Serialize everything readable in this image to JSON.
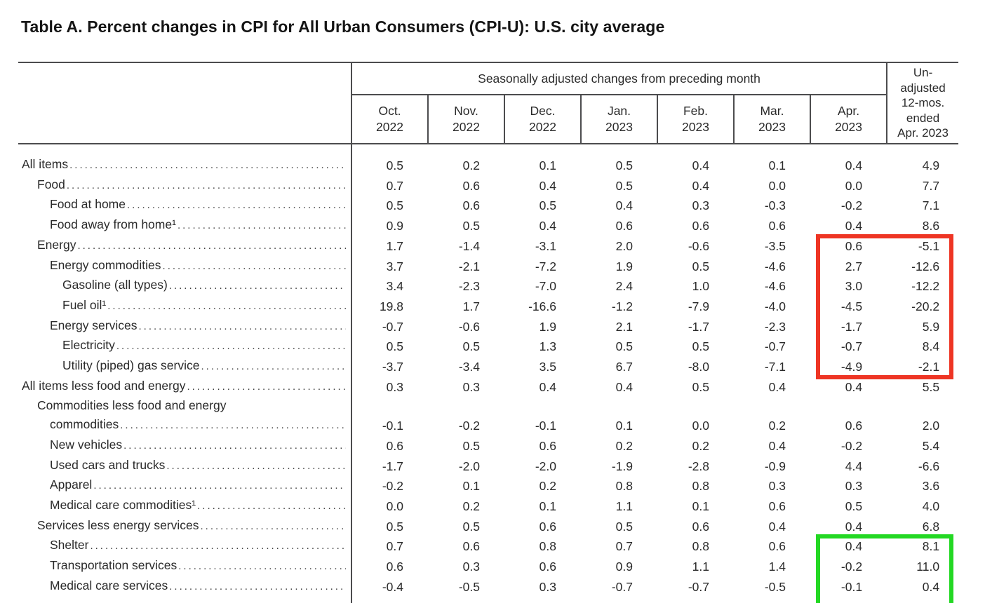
{
  "document": {
    "title": "Table A. Percent changes in CPI for All Urban Consumers (CPI-U): U.S. city average"
  },
  "colors": {
    "rule": "#4c4c4e",
    "text": "#2a2a2a",
    "highlight_red": "#ee3524",
    "highlight_green": "#23d823"
  },
  "table": {
    "header": {
      "seasonally_adjusted_label": "Seasonally adjusted changes from preceding month",
      "unadjusted_label": "Un-\nadjusted\n12-mos.\nended\nApr. 2023"
    },
    "columns": [
      {
        "month": "Oct.",
        "year": "2022"
      },
      {
        "month": "Nov.",
        "year": "2022"
      },
      {
        "month": "Dec.",
        "year": "2022"
      },
      {
        "month": "Jan.",
        "year": "2023"
      },
      {
        "month": "Feb.",
        "year": "2023"
      },
      {
        "month": "Mar.",
        "year": "2023"
      },
      {
        "month": "Apr.",
        "year": "2023"
      }
    ],
    "rows": [
      {
        "label": "All items",
        "indent": 0,
        "values": [
          "0.5",
          "0.2",
          "0.1",
          "0.5",
          "0.4",
          "0.1",
          "0.4",
          "4.9"
        ]
      },
      {
        "label": "Food",
        "indent": 1,
        "values": [
          "0.7",
          "0.6",
          "0.4",
          "0.5",
          "0.4",
          "0.0",
          "0.0",
          "7.7"
        ]
      },
      {
        "label": "Food at home",
        "indent": 2,
        "values": [
          "0.5",
          "0.6",
          "0.5",
          "0.4",
          "0.3",
          "-0.3",
          "-0.2",
          "7.1"
        ]
      },
      {
        "label": "Food away from home¹",
        "indent": 2,
        "values": [
          "0.9",
          "0.5",
          "0.4",
          "0.6",
          "0.6",
          "0.6",
          "0.4",
          "8.6"
        ]
      },
      {
        "label": "Energy",
        "indent": 1,
        "values": [
          "1.7",
          "-1.4",
          "-3.1",
          "2.0",
          "-0.6",
          "-3.5",
          "0.6",
          "-5.1"
        ]
      },
      {
        "label": "Energy commodities",
        "indent": 2,
        "values": [
          "3.7",
          "-2.1",
          "-7.2",
          "1.9",
          "0.5",
          "-4.6",
          "2.7",
          "-12.6"
        ]
      },
      {
        "label": "Gasoline (all types)",
        "indent": 3,
        "values": [
          "3.4",
          "-2.3",
          "-7.0",
          "2.4",
          "1.0",
          "-4.6",
          "3.0",
          "-12.2"
        ]
      },
      {
        "label": "Fuel oil¹",
        "indent": 3,
        "values": [
          "19.8",
          "1.7",
          "-16.6",
          "-1.2",
          "-7.9",
          "-4.0",
          "-4.5",
          "-20.2"
        ]
      },
      {
        "label": "Energy services",
        "indent": 2,
        "values": [
          "-0.7",
          "-0.6",
          "1.9",
          "2.1",
          "-1.7",
          "-2.3",
          "-1.7",
          "5.9"
        ]
      },
      {
        "label": "Electricity",
        "indent": 3,
        "values": [
          "0.5",
          "0.5",
          "1.3",
          "0.5",
          "0.5",
          "-0.7",
          "-0.7",
          "8.4"
        ]
      },
      {
        "label": "Utility (piped) gas service",
        "indent": 3,
        "values": [
          "-3.7",
          "-3.4",
          "3.5",
          "6.7",
          "-8.0",
          "-7.1",
          "-4.9",
          "-2.1"
        ]
      },
      {
        "label": "All items less food and energy",
        "indent": 0,
        "values": [
          "0.3",
          "0.3",
          "0.4",
          "0.4",
          "0.5",
          "0.4",
          "0.4",
          "5.5"
        ]
      },
      {
        "label": "Commodities less food and energy",
        "label_line2": "commodities",
        "indent": 1,
        "values": [
          "-0.1",
          "-0.2",
          "-0.1",
          "0.1",
          "0.0",
          "0.2",
          "0.6",
          "2.0"
        ]
      },
      {
        "label": "New vehicles",
        "indent": 2,
        "values": [
          "0.6",
          "0.5",
          "0.6",
          "0.2",
          "0.2",
          "0.4",
          "-0.2",
          "5.4"
        ]
      },
      {
        "label": "Used cars and trucks",
        "indent": 2,
        "values": [
          "-1.7",
          "-2.0",
          "-2.0",
          "-1.9",
          "-2.8",
          "-0.9",
          "4.4",
          "-6.6"
        ]
      },
      {
        "label": "Apparel",
        "indent": 2,
        "values": [
          "-0.2",
          "0.1",
          "0.2",
          "0.8",
          "0.8",
          "0.3",
          "0.3",
          "3.6"
        ]
      },
      {
        "label": "Medical care commodities¹",
        "indent": 2,
        "values": [
          "0.0",
          "0.2",
          "0.1",
          "1.1",
          "0.1",
          "0.6",
          "0.5",
          "4.0"
        ]
      },
      {
        "label": "Services less energy services",
        "indent": 1,
        "values": [
          "0.5",
          "0.5",
          "0.6",
          "0.5",
          "0.6",
          "0.4",
          "0.4",
          "6.8"
        ]
      },
      {
        "label": "Shelter",
        "indent": 2,
        "values": [
          "0.7",
          "0.6",
          "0.8",
          "0.7",
          "0.8",
          "0.6",
          "0.4",
          "8.1"
        ]
      },
      {
        "label": "Transportation services",
        "indent": 2,
        "values": [
          "0.6",
          "0.3",
          "0.6",
          "0.9",
          "1.1",
          "1.4",
          "-0.2",
          "11.0"
        ]
      },
      {
        "label": "Medical care services",
        "indent": 2,
        "values": [
          "-0.4",
          "-0.5",
          "0.3",
          "-0.7",
          "-0.7",
          "-0.5",
          "-0.1",
          "0.4"
        ]
      }
    ]
  },
  "highlights": [
    {
      "name": "highlight-box-red",
      "color": "#ee3524",
      "first_row": "Energy",
      "last_row": "Utility (piped) gas service",
      "first_column": "Apr. 2023",
      "last_column": "unadjusted"
    },
    {
      "name": "highlight-box-green",
      "color": "#23d823",
      "first_row": "Shelter",
      "last_row": "Medical care services",
      "first_column": "Apr. 2023",
      "last_column": "unadjusted"
    }
  ]
}
